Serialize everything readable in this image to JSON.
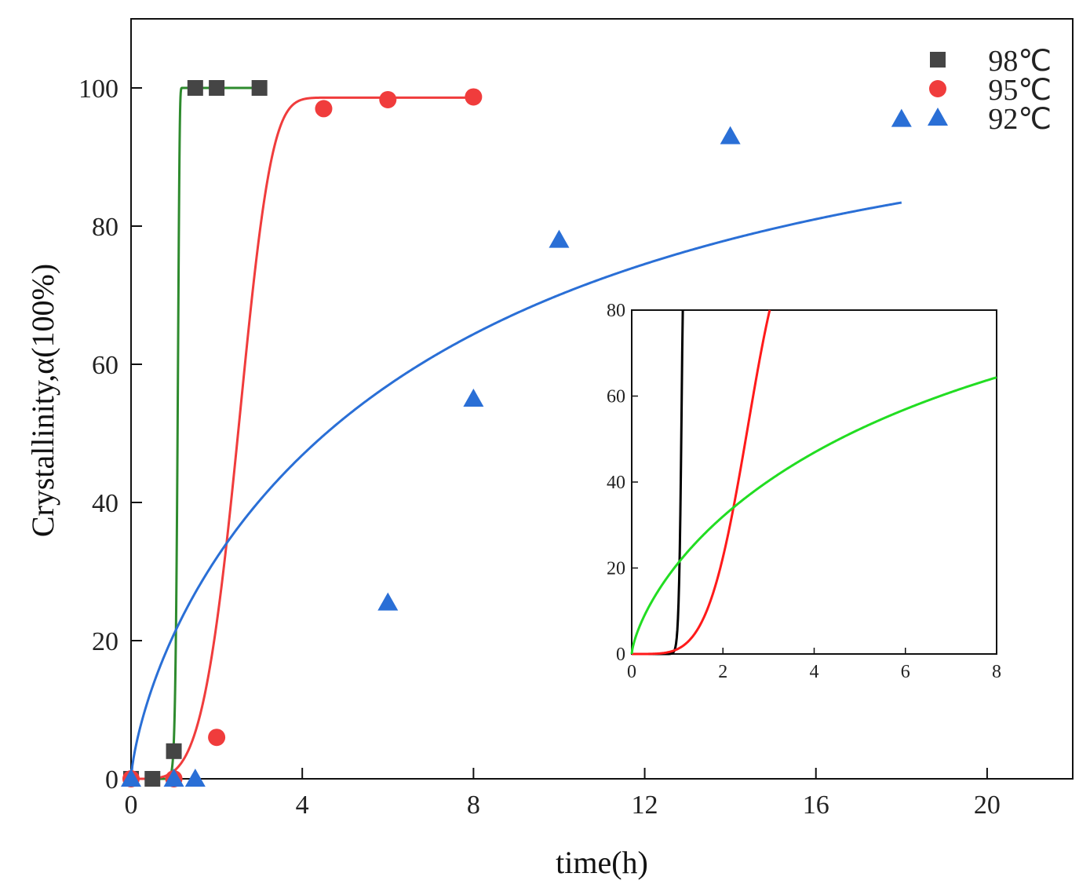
{
  "chart_data": [
    {
      "type": "scatter",
      "id": "main",
      "xlabel": "time(h)",
      "ylabel": "Crystallinity,α(100%)",
      "xlim": [
        0,
        22
      ],
      "ylim": [
        0,
        110
      ],
      "xticks": [
        0,
        4,
        8,
        12,
        16,
        20
      ],
      "yticks": [
        0,
        20,
        40,
        60,
        80,
        100
      ],
      "legend_position": "top-right",
      "series": [
        {
          "name": "98℃",
          "marker": "square",
          "marker_color": "#454545",
          "line_color": "#2e8b2e",
          "fit": {
            "t0": 1.1,
            "k": 30
          },
          "x": [
            0,
            0.5,
            1,
            1.5,
            2,
            3
          ],
          "y": [
            0,
            0,
            4,
            100,
            100,
            100
          ]
        },
        {
          "name": "95℃",
          "marker": "circle",
          "marker_color": "#f03c3c",
          "line_color": "#f03c3c",
          "fit": {
            "t0": 2.7,
            "k": 4.5,
            "max": 98.6
          },
          "x": [
            0,
            1,
            2,
            4.5,
            6,
            8
          ],
          "y": [
            0,
            0,
            6,
            97,
            98.3,
            98.7
          ]
        },
        {
          "name": "92℃",
          "marker": "triangle",
          "marker_color": "#2a6fd6",
          "line_color": "#2a6fd6",
          "fit": {
            "t0": 7.2,
            "k": 0.72,
            "max": 97.5
          },
          "x": [
            0,
            1,
            1.5,
            6,
            8,
            10,
            14,
            18
          ],
          "y": [
            0,
            0,
            0,
            25.5,
            55,
            78,
            93,
            95.5
          ]
        }
      ]
    },
    {
      "type": "line",
      "id": "inset",
      "xlim": [
        0,
        8
      ],
      "ylim": [
        0,
        80
      ],
      "xticks": [
        0,
        2,
        4,
        6,
        8
      ],
      "yticks": [
        0,
        20,
        40,
        60,
        80
      ],
      "series": [
        {
          "name": "98℃",
          "color": "#000000",
          "fit": {
            "t0": 1.1,
            "k": 30
          }
        },
        {
          "name": "95℃",
          "color": "#ff1a1a",
          "fit": {
            "t0": 2.7,
            "k": 4.5,
            "max": 98.6
          }
        },
        {
          "name": "92℃",
          "color": "#22dd22",
          "fit": {
            "t0": 7.2,
            "k": 0.72,
            "max": 97.5
          }
        }
      ]
    }
  ]
}
